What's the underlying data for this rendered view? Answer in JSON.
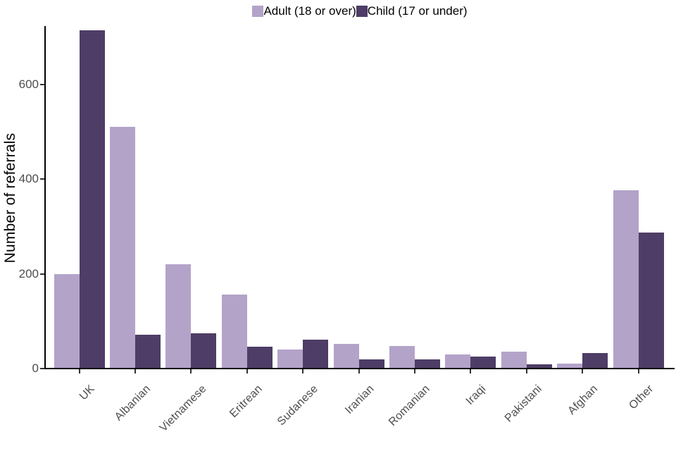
{
  "chart_data": {
    "type": "bar",
    "bar_layout": "grouped",
    "title": "",
    "xlabel": "",
    "ylabel": "Number of referrals",
    "categories": [
      "UK",
      "Albanian",
      "Vietnamese",
      "Eritrean",
      "Sudanese",
      "Iranian",
      "Romanian",
      "Iraqi",
      "Pakistani",
      "Afghan",
      "Other"
    ],
    "series": [
      {
        "name": "Adult (18 or over)",
        "color": "#b3a3c9",
        "values": [
          200,
          510,
          220,
          157,
          40,
          52,
          47,
          30,
          36,
          11,
          377
        ]
      },
      {
        "name": "Child (17 or under)",
        "color": "#4e3d66",
        "values": [
          715,
          72,
          74,
          46,
          61,
          20,
          20,
          26,
          9,
          33,
          287
        ]
      }
    ],
    "y_ticks": [
      0,
      200,
      400,
      600
    ],
    "ylim": [
      0,
      730
    ],
    "grid": false,
    "legend_position": "top center"
  },
  "colors": {
    "adult_bar": "#b3a3c9",
    "child_bar": "#4e3d66",
    "axis_line": "#000000",
    "tick_mark": "#333333",
    "tick_text": "#4d4d4d",
    "axis_title_text": "#000000",
    "background": "#ffffff"
  }
}
